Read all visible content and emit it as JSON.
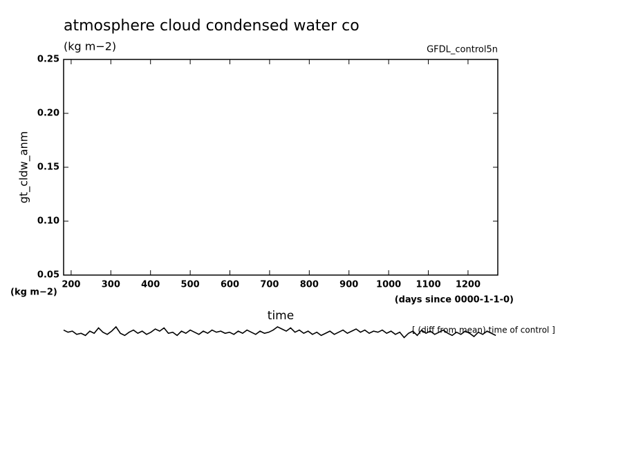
{
  "chart_data": {
    "type": "line",
    "title": "atmosphere cloud condensed water co",
    "subtitle": "(kg m−2)",
    "source": "GFDL_control5n",
    "y_label": "gt_cldw_anm",
    "y_unit": "(kg m−2)",
    "x_label": "time",
    "x_unit": "(days since 0000-1-1-0)",
    "annotation": "[ (diff from mean) time of control ]",
    "xlim": [
      181,
      1275
    ],
    "ylim": [
      0.05,
      0.25
    ],
    "xticks": [
      200,
      300,
      400,
      500,
      600,
      700,
      800,
      900,
      1000,
      1100,
      1200
    ],
    "yticks": [
      {
        "value": 0.05,
        "label": "0.05"
      },
      {
        "value": 0.1,
        "label": "0.10"
      },
      0.15,
      {
        "value": 0.2,
        "label": "0.20"
      },
      0.25
    ],
    "x": [
      181,
      192,
      203,
      214,
      225,
      236,
      247,
      258,
      269,
      280,
      291,
      302,
      313,
      324,
      335,
      346,
      357,
      368,
      379,
      390,
      401,
      412,
      423,
      434,
      445,
      456,
      467,
      478,
      489,
      500,
      511,
      522,
      533,
      544,
      555,
      566,
      577,
      588,
      599,
      610,
      621,
      632,
      643,
      654,
      665,
      676,
      687,
      698,
      709,
      720,
      731,
      742,
      753,
      764,
      775,
      786,
      797,
      808,
      819,
      830,
      841,
      852,
      863,
      874,
      885,
      896,
      907,
      918,
      929,
      940,
      951,
      962,
      973,
      984,
      995,
      1006,
      1017,
      1028,
      1039,
      1050,
      1061,
      1072,
      1083,
      1094,
      1105,
      1116,
      1127,
      1138,
      1149,
      1160,
      1171,
      1182,
      1193,
      1204,
      1215,
      1226,
      1237,
      1248,
      1259,
      1270
    ],
    "series": [
      {
        "color": "#000000",
        "values": [
          -0.001,
          -0.003,
          -0.002,
          -0.005,
          -0.004,
          -0.006,
          -0.002,
          -0.004,
          0.001,
          -0.003,
          -0.005,
          -0.002,
          0.002,
          -0.004,
          -0.006,
          -0.003,
          -0.001,
          -0.004,
          -0.002,
          -0.005,
          -0.003,
          0.0,
          -0.002,
          0.001,
          -0.004,
          -0.003,
          -0.006,
          -0.002,
          -0.004,
          -0.001,
          -0.003,
          -0.005,
          -0.002,
          -0.004,
          -0.001,
          -0.003,
          -0.002,
          -0.004,
          -0.003,
          -0.005,
          -0.002,
          -0.004,
          -0.001,
          -0.003,
          -0.005,
          -0.002,
          -0.004,
          -0.003,
          -0.001,
          0.002,
          0.0,
          -0.002,
          0.001,
          -0.003,
          -0.001,
          -0.004,
          -0.002,
          -0.005,
          -0.003,
          -0.006,
          -0.004,
          -0.002,
          -0.005,
          -0.003,
          -0.001,
          -0.004,
          -0.002,
          0.0,
          -0.003,
          -0.001,
          -0.004,
          -0.002,
          -0.003,
          -0.001,
          -0.004,
          -0.002,
          -0.005,
          -0.003,
          -0.008,
          -0.004,
          -0.002,
          -0.006,
          -0.001,
          -0.004,
          -0.002,
          -0.005,
          -0.003,
          -0.001,
          -0.004,
          -0.006,
          -0.003,
          -0.005,
          -0.002,
          -0.004,
          -0.007,
          -0.003,
          -0.005,
          -0.002,
          -0.004,
          -0.006
        ]
      }
    ]
  }
}
